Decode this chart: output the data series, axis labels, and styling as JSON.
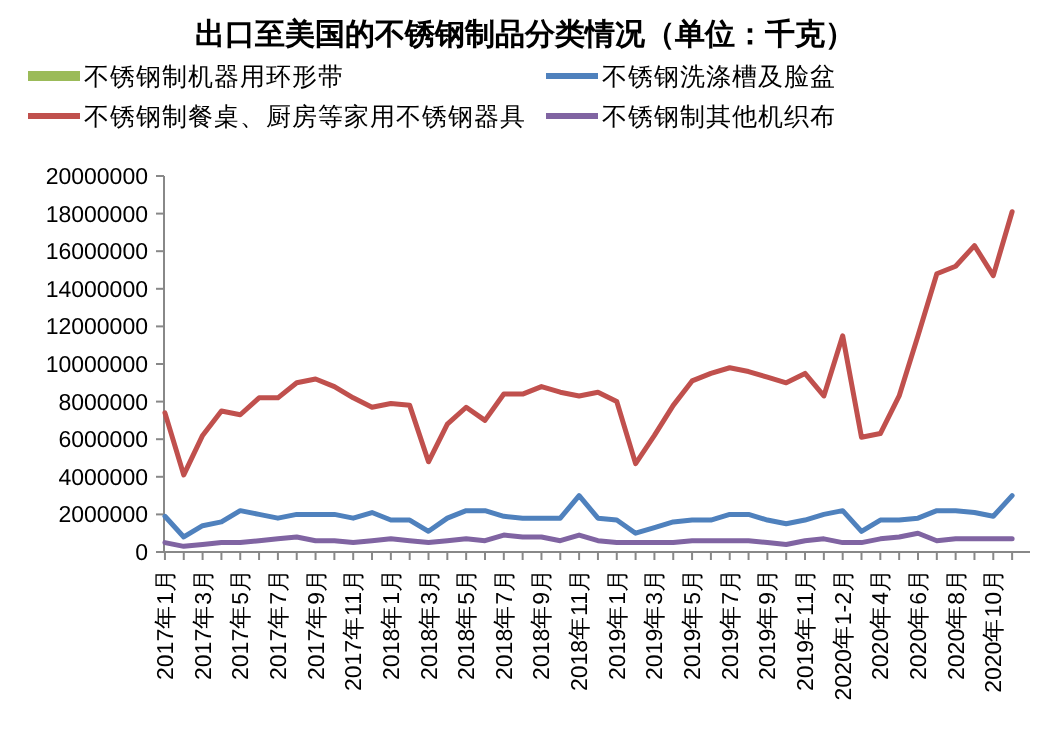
{
  "chart_data": {
    "type": "line",
    "title": "出口至美国的不锈钢制品分类情况（单位：千克）",
    "categories": [
      "2017年1月",
      null,
      "2017年3月",
      null,
      "2017年5月",
      null,
      "2017年7月",
      null,
      "2017年9月",
      null,
      "2017年11月",
      null,
      "2018年1月",
      null,
      "2018年3月",
      null,
      "2018年5月",
      null,
      "2018年7月",
      null,
      "2018年9月",
      null,
      "2018年11月",
      null,
      "2019年1月",
      null,
      "2019年3月",
      null,
      "2019年5月",
      null,
      "2019年7月",
      null,
      "2019年9月",
      null,
      "2019年11月",
      null,
      "2020年1-2月",
      null,
      "2020年4月",
      null,
      "2020年6月",
      null,
      "2020年8月",
      null,
      "2020年10月",
      null
    ],
    "series": [
      {
        "name": "不锈钢制机器用环形带",
        "color": "#9bbb59",
        "values": [
          null,
          null,
          null,
          null,
          null,
          null,
          null,
          null,
          null,
          null,
          null,
          null,
          null,
          null,
          null,
          null,
          null,
          null,
          null,
          null,
          null,
          null,
          null,
          null,
          null,
          null,
          null,
          null,
          null,
          null,
          null,
          null,
          null,
          null,
          null,
          null,
          null,
          null,
          null,
          null,
          null,
          null,
          null,
          null,
          null,
          null
        ]
      },
      {
        "name": "不锈钢制餐桌、厨房等家用不锈钢器具",
        "color": "#c0504d",
        "values": [
          7400000,
          4100000,
          6200000,
          7500000,
          7300000,
          8200000,
          8200000,
          9000000,
          9200000,
          8800000,
          8200000,
          7700000,
          7900000,
          7800000,
          4800000,
          6800000,
          7700000,
          7000000,
          8400000,
          8400000,
          8800000,
          8500000,
          8300000,
          8500000,
          8000000,
          4700000,
          6200000,
          7800000,
          9100000,
          9500000,
          9800000,
          9600000,
          9300000,
          9000000,
          9500000,
          8300000,
          11500000,
          6100000,
          6300000,
          8300000,
          11500000,
          14800000,
          15200000,
          16300000,
          14700000,
          18100000
        ]
      },
      {
        "name": "不锈钢洗涤槽及脸盆",
        "color": "#4f81bd",
        "values": [
          1900000,
          800000,
          1400000,
          1600000,
          2200000,
          2000000,
          1800000,
          2000000,
          2000000,
          2000000,
          1800000,
          2100000,
          1700000,
          1700000,
          1100000,
          1800000,
          2200000,
          2200000,
          1900000,
          1800000,
          1800000,
          1800000,
          3000000,
          1800000,
          1700000,
          1000000,
          1300000,
          1600000,
          1700000,
          1700000,
          2000000,
          2000000,
          1700000,
          1500000,
          1700000,
          2000000,
          2200000,
          1100000,
          1700000,
          1700000,
          1800000,
          2200000,
          2200000,
          2100000,
          1900000,
          3000000
        ]
      },
      {
        "name": "不锈钢制其他机织布",
        "color": "#8064a2",
        "values": [
          500000,
          300000,
          400000,
          500000,
          500000,
          600000,
          700000,
          800000,
          600000,
          600000,
          500000,
          600000,
          700000,
          600000,
          500000,
          600000,
          700000,
          600000,
          900000,
          800000,
          800000,
          600000,
          900000,
          600000,
          500000,
          500000,
          500000,
          500000,
          600000,
          600000,
          600000,
          600000,
          500000,
          400000,
          600000,
          700000,
          500000,
          500000,
          700000,
          800000,
          1000000,
          600000,
          700000,
          700000,
          700000,
          700000
        ]
      }
    ],
    "ylim": [
      0,
      20000000
    ],
    "yticks": [
      0,
      2000000,
      4000000,
      6000000,
      8000000,
      10000000,
      12000000,
      14000000,
      16000000,
      18000000,
      20000000
    ],
    "grid": false,
    "legend": "top",
    "marker": "none",
    "line_style": "solid"
  }
}
